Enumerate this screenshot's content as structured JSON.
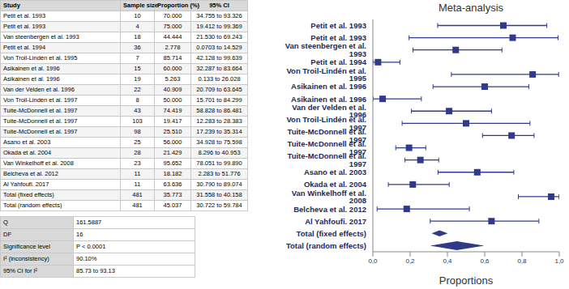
{
  "table": {
    "header": [
      "Study",
      "Sample size",
      "Proportion (%)",
      "95% CI"
    ],
    "rows": [
      [
        "Petit et al. 1993",
        "10",
        "70.000",
        "34.755 to 93.326"
      ],
      [
        "Petit et al. 1993",
        "4",
        "75.000",
        "19.412 to 99.369"
      ],
      [
        "Van steenbergen et al. 1993",
        "18",
        "44.444",
        "21.530 to 69.243"
      ],
      [
        "Petit et al. 1994",
        "36",
        "2.778",
        "0.0703 to 14.529"
      ],
      [
        "Von Troil-Lindén et al. 1995",
        "7",
        "85.714",
        "42.128 to 99.639"
      ],
      [
        "Asikainen et al. 1996",
        "15",
        "60.000",
        "32.287 to 83.664"
      ],
      [
        "Asikainen et al. 1996",
        "19",
        "5.263",
        "0.133 to 26.028"
      ],
      [
        "Van der Velden et al. 1996",
        "22",
        "40.909",
        "20.709 to 63.645"
      ],
      [
        "Von Troil-Lindén et al. 1997",
        "8",
        "50.000",
        "15.701 to 84.299"
      ],
      [
        "Tuite-McDonnell et al. 1997",
        "43",
        "74.419",
        "58.828 to 86.481"
      ],
      [
        "Tuite-McDonnell et al. 1997",
        "103",
        "19.417",
        "12.283 to 28.383"
      ],
      [
        "Tuite-McDonnell et al. 1997",
        "98",
        "25.510",
        "17.239 to 35.314"
      ],
      [
        "Asano et al. 2003",
        "25",
        "56.000",
        "34.928 to 75.598"
      ],
      [
        "Okada et al. 2004",
        "28",
        "21.429",
        "8.296 to 40.953"
      ],
      [
        "Van Winkelhoff et al. 2008",
        "23",
        "95.652",
        "78.051 to 99.890"
      ],
      [
        "Belcheva et al. 2012",
        "11",
        "18.182",
        "2.283 to 51.776"
      ],
      [
        "Al Yahfoufi. 2017",
        "11",
        "63.636",
        "30.790 to 89.074"
      ],
      [
        "Total (fixed effects)",
        "481",
        "35.773",
        "31.558 to 40.158"
      ],
      [
        "Total (random effects)",
        "481",
        "45.037",
        "30.722 to 59.784"
      ]
    ]
  },
  "heterogeneity": {
    "rows": [
      [
        "Q",
        "161.5887"
      ],
      [
        "DF",
        "16"
      ],
      [
        "Significance level",
        "P < 0.0001"
      ],
      [
        "I² (inconsistency)",
        "90.10%"
      ],
      [
        "95% CI for I²",
        "85.73 to 93.13"
      ]
    ]
  },
  "chart_data": {
    "type": "forest",
    "title": "Meta-analysis",
    "x_label": "Proportions",
    "categories": [
      "Petit et al. 1993",
      "Petit et al. 1993",
      "Van steenbergen et al. 1993",
      "Petit et al. 1994",
      "Von Troil-Lindén et al. 1995",
      "Asikainen et al. 1996",
      "Asikainen et al. 1996",
      "Van der Velden et al. 1996",
      "Von Troil-Lindén et al. 1997",
      "Tuite-McDonnell et al. 1997",
      "Tuite-McDonnell et al. 1997",
      "Tuite-McDonnell et al. 1997",
      "Asano et al. 2003",
      "Okada et al. 2004",
      "Van Winkelhoff et al. 2008",
      "Belcheva et al. 2012",
      "Al Yahfoufi. 2017",
      "Total (fixed effects)",
      "Total (random effects)"
    ],
    "values": [
      0.7,
      0.75,
      0.44444,
      0.02778,
      0.85714,
      0.6,
      0.05263,
      0.40909,
      0.5,
      0.74419,
      0.19417,
      0.2551,
      0.56,
      0.21429,
      0.95652,
      0.18182,
      0.63636,
      0.35773,
      0.45037
    ],
    "ci_low": [
      0.34755,
      0.19412,
      0.2153,
      0.000703,
      0.42128,
      0.32287,
      0.00133,
      0.20709,
      0.15701,
      0.58828,
      0.12283,
      0.17239,
      0.34928,
      0.08296,
      0.78051,
      0.02283,
      0.3079,
      0.31558,
      0.30722
    ],
    "ci_high": [
      0.93326,
      0.99369,
      0.69243,
      0.14529,
      0.99639,
      0.83664,
      0.26028,
      0.63645,
      0.84299,
      0.86481,
      0.28383,
      0.35314,
      0.75598,
      0.40953,
      0.9989,
      0.51776,
      0.89074,
      0.40158,
      0.59784
    ],
    "xlim": [
      0,
      1
    ],
    "xticks": [
      {
        "value": 0,
        "label": "0,0"
      },
      {
        "value": 0.2,
        "label": "0,2"
      },
      {
        "value": 0.4,
        "label": "0,4"
      },
      {
        "value": 0.6,
        "label": "0,6"
      },
      {
        "value": 0.8,
        "label": "0,8"
      },
      {
        "value": 1,
        "label": "1,0"
      }
    ],
    "color": "#2f3a8c",
    "marker": "square",
    "grid": false
  }
}
